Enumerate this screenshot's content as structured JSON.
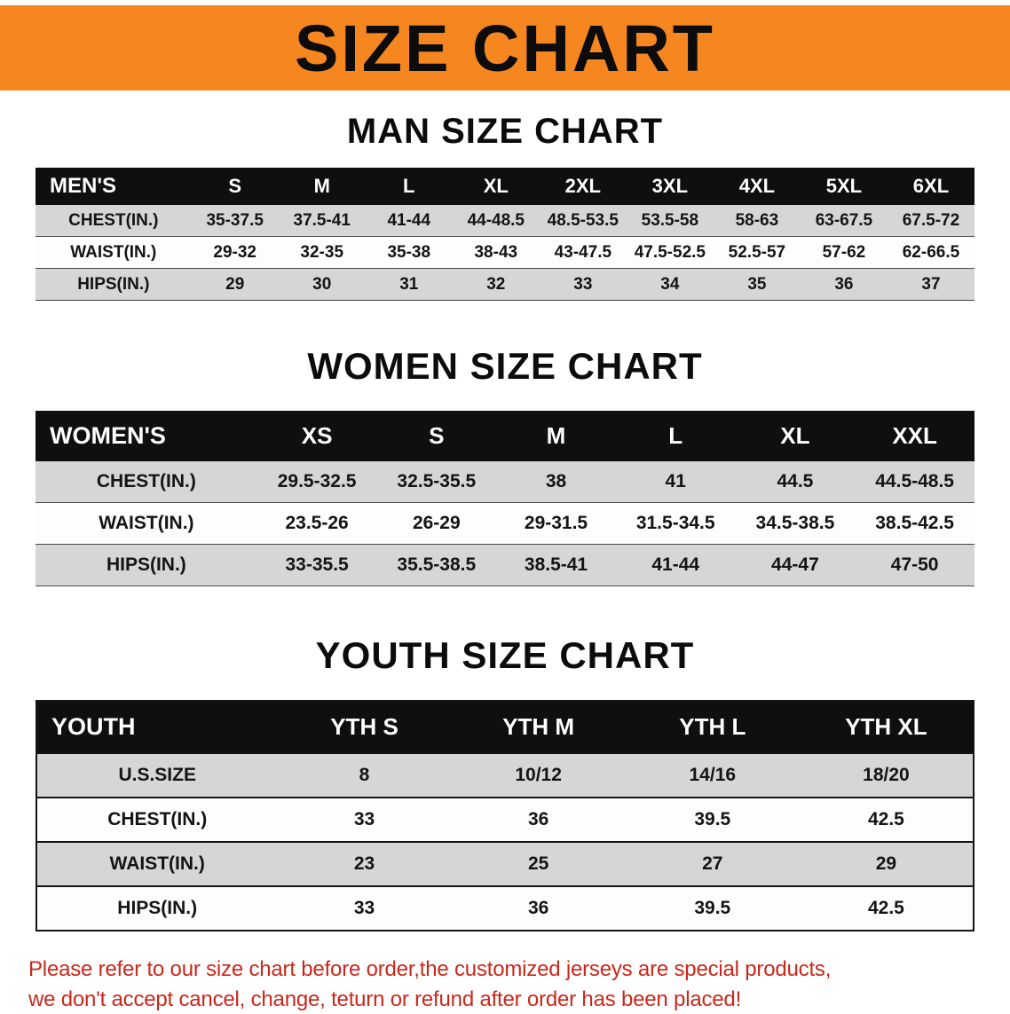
{
  "colors": {
    "banner_orange": "#f6861f",
    "table_header_black": "#0f0f0f",
    "row_gray": "#d6d6d6",
    "disclaimer_red": "#c9281c"
  },
  "banner": {
    "title": "SIZE CHART"
  },
  "sections": [
    {
      "heading": "MAN SIZE CHART",
      "table": {
        "header": [
          "MEN'S",
          "S",
          "M",
          "L",
          "XL",
          "2XL",
          "3XL",
          "4XL",
          "5XL",
          "6XL"
        ],
        "rows": [
          {
            "label": "CHEST(IN.)",
            "values": [
              "35-37.5",
              "37.5-41",
              "41-44",
              "44-48.5",
              "48.5-53.5",
              "53.5-58",
              "58-63",
              "63-67.5",
              "67.5-72"
            ]
          },
          {
            "label": "WAIST(IN.)",
            "values": [
              "29-32",
              "32-35",
              "35-38",
              "38-43",
              "43-47.5",
              "47.5-52.5",
              "52.5-57",
              "57-62",
              "62-66.5"
            ]
          },
          {
            "label": "HIPS(IN.)",
            "values": [
              "29",
              "30",
              "31",
              "32",
              "33",
              "34",
              "35",
              "36",
              "37"
            ]
          }
        ]
      }
    },
    {
      "heading": "WOMEN SIZE CHART",
      "table": {
        "header": [
          "WOMEN'S",
          "XS",
          "S",
          "M",
          "L",
          "XL",
          "XXL"
        ],
        "rows": [
          {
            "label": "CHEST(IN.)",
            "values": [
              "29.5-32.5",
              "32.5-35.5",
              "38",
              "41",
              "44.5",
              "44.5-48.5"
            ]
          },
          {
            "label": "WAIST(IN.)",
            "values": [
              "23.5-26",
              "26-29",
              "29-31.5",
              "31.5-34.5",
              "34.5-38.5",
              "38.5-42.5"
            ]
          },
          {
            "label": "HIPS(IN.)",
            "values": [
              "33-35.5",
              "35.5-38.5",
              "38.5-41",
              "41-44",
              "44-47",
              "47-50"
            ]
          }
        ]
      }
    },
    {
      "heading": "YOUTH SIZE CHART",
      "table": {
        "header": [
          "YOUTH",
          "YTH S",
          "YTH M",
          "YTH L",
          "YTH XL"
        ],
        "rows": [
          {
            "label": "U.S.SIZE",
            "values": [
              "8",
              "10/12",
              "14/16",
              "18/20"
            ]
          },
          {
            "label": "CHEST(IN.)",
            "values": [
              "33",
              "36",
              "39.5",
              "42.5"
            ]
          },
          {
            "label": "WAIST(IN.)",
            "values": [
              "23",
              "25",
              "27",
              "29"
            ]
          },
          {
            "label": "HIPS(IN.)",
            "values": [
              "33",
              "36",
              "39.5",
              "42.5"
            ]
          }
        ]
      }
    }
  ],
  "disclaimer": {
    "lines": [
      "Please refer to our size chart before order,the customized jerseys are special products,",
      "we don't accept cancel, change, teturn or refund after order has been placed!"
    ]
  }
}
